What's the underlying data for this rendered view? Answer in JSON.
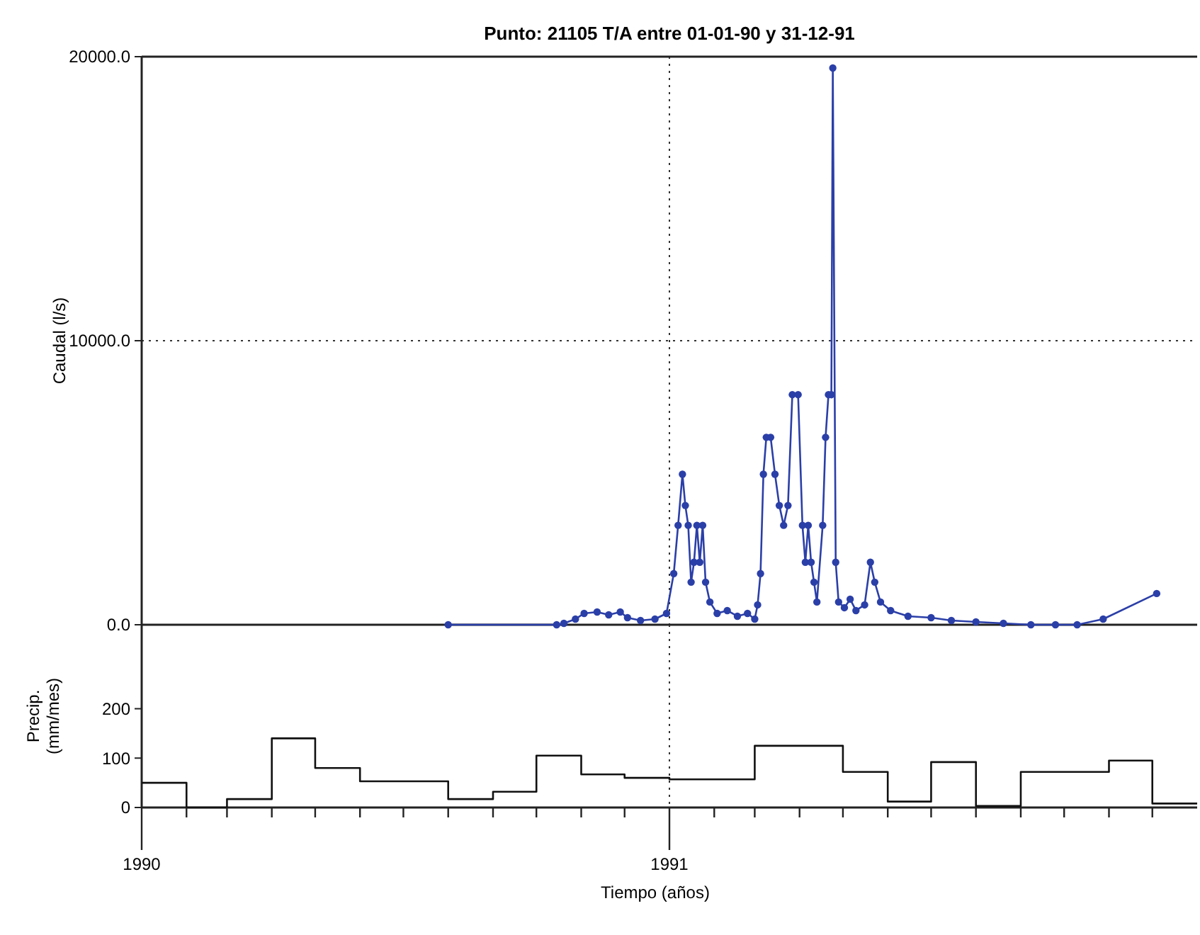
{
  "chart_data": [
    {
      "type": "line",
      "title": "Punto: 21105 T/A entre 01-01-90 y 31-12-91",
      "ylabel": "Caudal (l/s)",
      "xlim": [
        "1990-01-01",
        "1992-01-01"
      ],
      "ylim": [
        0,
        20000
      ],
      "yticks": [
        {
          "value": 0,
          "label": "0.0"
        },
        {
          "value": 10000,
          "label": "10000.0"
        },
        {
          "value": 20000,
          "label": "20000.0"
        }
      ],
      "tick_labels": "y",
      "grid": "y",
      "marker": "circle",
      "line_style": "solid",
      "ref_lines": [
        {
          "axis": "x",
          "value": "1991-01-01",
          "line_style": "dotted",
          "color": "#333333"
        }
      ],
      "x": [
        "1990-08-01",
        "1990-10-15",
        "1990-10-20",
        "1990-10-28",
        "1990-11-03",
        "1990-11-12",
        "1990-11-20",
        "1990-11-28",
        "1990-12-03",
        "1990-12-12",
        "1990-12-22",
        "1990-12-30",
        "1991-01-04",
        "1991-01-07",
        "1991-01-10",
        "1991-01-12",
        "1991-01-14",
        "1991-01-16",
        "1991-01-18",
        "1991-01-20",
        "1991-01-22",
        "1991-01-24",
        "1991-01-26",
        "1991-01-29",
        "1991-02-03",
        "1991-02-10",
        "1991-02-17",
        "1991-02-24",
        "1991-03-01",
        "1991-03-03",
        "1991-03-05",
        "1991-03-07",
        "1991-03-09",
        "1991-03-12",
        "1991-03-15",
        "1991-03-18",
        "1991-03-21",
        "1991-03-24",
        "1991-03-27",
        "1991-03-31",
        "1991-04-03",
        "1991-04-05",
        "1991-04-07",
        "1991-04-09",
        "1991-04-11",
        "1991-04-13",
        "1991-04-17",
        "1991-04-19",
        "1991-04-21",
        "1991-04-23",
        "1991-04-24",
        "1991-04-26",
        "1991-04-28",
        "1991-05-02",
        "1991-05-06",
        "1991-05-10",
        "1991-05-16",
        "1991-05-20",
        "1991-05-23",
        "1991-05-27",
        "1991-06-03",
        "1991-06-15",
        "1991-07-01",
        "1991-07-15",
        "1991-08-01",
        "1991-08-20",
        "1991-09-08",
        "1991-09-25",
        "1991-10-10",
        "1991-10-28",
        "1991-12-04"
      ],
      "series": [
        {
          "color": "#2b3fa8",
          "values": [
            0,
            0,
            50,
            200,
            400,
            450,
            350,
            450,
            250,
            150,
            200,
            400,
            1800,
            3500,
            5300,
            4200,
            3500,
            1500,
            2200,
            3500,
            2200,
            3500,
            1500,
            800,
            400,
            500,
            300,
            400,
            200,
            700,
            1800,
            5300,
            6600,
            6600,
            5300,
            4200,
            3500,
            4200,
            8100,
            8100,
            3500,
            2200,
            3500,
            2200,
            1500,
            800,
            3500,
            6600,
            8100,
            8100,
            19600,
            2200,
            800,
            600,
            900,
            500,
            700,
            2200,
            1500,
            800,
            500,
            300,
            250,
            150,
            100,
            50,
            0,
            0,
            0,
            200,
            1100
          ]
        }
      ]
    },
    {
      "type": "step",
      "ylabel": "Precip. (mm/mes)",
      "xlabel": "Tiempo (años)",
      "xlim": [
        "1990-01-01",
        "1992-01-01"
      ],
      "ylim": [
        0,
        370
      ],
      "yticks": [
        0,
        100,
        200
      ],
      "xticks": [
        {
          "value": "1990-01-01",
          "label": "1990"
        },
        {
          "value": "1990-02-01",
          "label": null
        },
        {
          "value": "1990-03-01",
          "label": null
        },
        {
          "value": "1990-04-01",
          "label": null
        },
        {
          "value": "1990-05-01",
          "label": null
        },
        {
          "value": "1990-06-01",
          "label": null
        },
        {
          "value": "1990-07-01",
          "label": null
        },
        {
          "value": "1990-08-01",
          "label": null
        },
        {
          "value": "1990-09-01",
          "label": null
        },
        {
          "value": "1990-10-01",
          "label": null
        },
        {
          "value": "1990-11-01",
          "label": null
        },
        {
          "value": "1990-12-01",
          "label": null
        },
        {
          "value": "1991-01-01",
          "label": "1991"
        },
        {
          "value": "1991-02-01",
          "label": null
        },
        {
          "value": "1991-03-01",
          "label": null
        },
        {
          "value": "1991-04-01",
          "label": null
        },
        {
          "value": "1991-05-01",
          "label": null
        },
        {
          "value": "1991-06-01",
          "label": null
        },
        {
          "value": "1991-07-01",
          "label": null
        },
        {
          "value": "1991-08-01",
          "label": null
        },
        {
          "value": "1991-09-01",
          "label": null
        },
        {
          "value": "1991-10-01",
          "label": null
        },
        {
          "value": "1991-11-01",
          "label": null
        },
        {
          "value": "1991-12-01",
          "label": null
        }
      ],
      "ref_lines": [
        {
          "axis": "x",
          "value": "1991-01-01",
          "line_style": "dotted",
          "color": "#333333"
        }
      ],
      "x": [
        "1990-01",
        "1990-02",
        "1990-03",
        "1990-04",
        "1990-05",
        "1990-06",
        "1990-07",
        "1990-08",
        "1990-09",
        "1990-10",
        "1990-11",
        "1990-12",
        "1991-01",
        "1991-02",
        "1991-03",
        "1991-04",
        "1991-05",
        "1991-06",
        "1991-07",
        "1991-08",
        "1991-09",
        "1991-10",
        "1991-11",
        "1991-12",
        "1992-01"
      ],
      "series": [
        {
          "color": "#111111",
          "values": [
            50,
            0,
            17,
            140,
            80,
            53,
            53,
            17,
            32,
            105,
            67,
            60,
            57,
            57,
            125,
            125,
            72,
            12,
            92,
            3,
            72,
            72,
            95,
            8,
            8
          ]
        }
      ]
    }
  ]
}
